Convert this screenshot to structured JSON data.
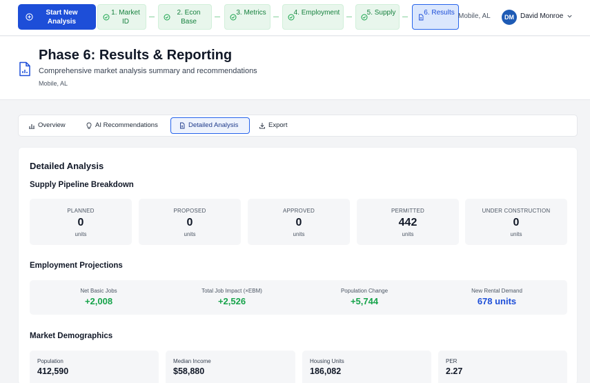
{
  "topbar": {
    "start_button": "Start New Analysis",
    "steps": [
      {
        "label": "1. Market ID"
      },
      {
        "label": "2. Econ Base"
      },
      {
        "label": "3. Metrics"
      },
      {
        "label": "4. Employment"
      },
      {
        "label": "5. Supply"
      },
      {
        "label": "6. Results"
      }
    ],
    "location": "Mobile, AL",
    "user": {
      "initials": "DM",
      "name": "David Monroe"
    }
  },
  "header": {
    "title": "Phase 6: Results & Reporting",
    "subtitle": "Comprehensive market analysis summary and recommendations",
    "location": "Mobile, AL"
  },
  "tabs": [
    {
      "label": "Overview",
      "icon": "bar-chart-icon"
    },
    {
      "label": "AI Recommendations",
      "icon": "lightbulb-icon"
    },
    {
      "label": "Detailed Analysis",
      "icon": "document-icon",
      "active": true
    },
    {
      "label": "Export",
      "icon": "download-icon"
    }
  ],
  "detail": {
    "title": "Detailed Analysis",
    "supply": {
      "heading": "Supply Pipeline Breakdown",
      "items": [
        {
          "label": "PLANNED",
          "value": "0",
          "unit": "units"
        },
        {
          "label": "PROPOSED",
          "value": "0",
          "unit": "units"
        },
        {
          "label": "APPROVED",
          "value": "0",
          "unit": "units"
        },
        {
          "label": "PERMITTED",
          "value": "442",
          "unit": "units"
        },
        {
          "label": "UNDER CONSTRUCTION",
          "value": "0",
          "unit": "units"
        }
      ]
    },
    "employment": {
      "heading": "Employment Projections",
      "items": [
        {
          "label": "Net Basic Jobs",
          "value": "+2,008"
        },
        {
          "label": "Total Job Impact (×EBM)",
          "value": "+2,526"
        },
        {
          "label": "Population Change",
          "value": "+5,744"
        },
        {
          "label": "New Rental Demand",
          "value": "678 units"
        }
      ]
    },
    "demographics": {
      "heading": "Market Demographics",
      "items": [
        {
          "label": "Population",
          "value": "412,590"
        },
        {
          "label": "Median Income",
          "value": "$58,880"
        },
        {
          "label": "Housing Units",
          "value": "186,082"
        },
        {
          "label": "PER",
          "value": "2.27"
        }
      ]
    }
  },
  "colors": {
    "primary": "#1d4ed8",
    "success": "#16a34a",
    "demand_blue": "#1d4ed8",
    "step_done_bg": "#e8f6ec",
    "step_active_bg": "#dbe7fd"
  }
}
